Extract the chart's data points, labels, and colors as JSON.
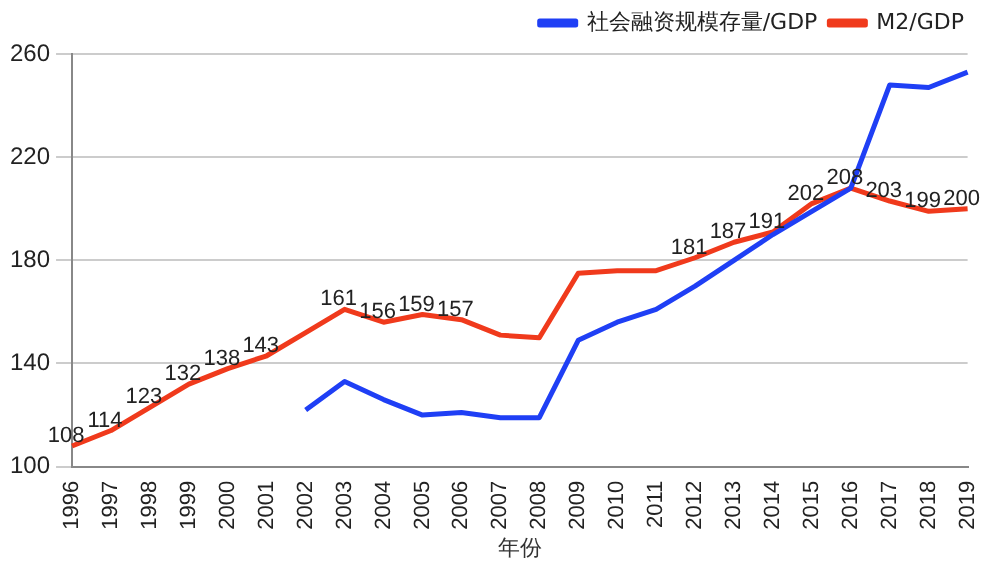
{
  "chart_data": {
    "type": "line",
    "xlabel": "年份",
    "categories": [
      "1996",
      "1997",
      "1998",
      "1999",
      "2000",
      "2001",
      "2002",
      "2003",
      "2004",
      "2005",
      "2006",
      "2007",
      "2008",
      "2009",
      "2010",
      "2011",
      "2012",
      "2013",
      "2014",
      "2015",
      "2016",
      "2017",
      "2018",
      "2019"
    ],
    "series": [
      {
        "name": "社会融资规模存量/GDP",
        "color": "#1f3ff5",
        "values": [
          null,
          null,
          null,
          null,
          null,
          null,
          122,
          133,
          126,
          120,
          121,
          119,
          119,
          149,
          156,
          161,
          170,
          180,
          190,
          199,
          208,
          248,
          247,
          253
        ]
      },
      {
        "name": "M2/GDP",
        "color": "#f03a1c",
        "values": [
          108,
          114,
          123,
          132,
          138,
          143,
          152,
          161,
          156,
          159,
          157,
          151,
          150,
          175,
          176,
          176,
          181,
          187,
          191,
          202,
          208,
          203,
          199,
          200
        ],
        "value_labels": [
          "108",
          "114",
          "123",
          "132",
          "138",
          "143",
          null,
          "161",
          "156",
          "159",
          "157",
          null,
          null,
          null,
          null,
          null,
          "181",
          "187",
          "191",
          "202",
          "208",
          "203",
          "199",
          "200"
        ]
      }
    ],
    "ylim": [
      100,
      260
    ],
    "yticks": [
      100,
      140,
      180,
      220,
      260
    ],
    "grid": "y",
    "legend": "top",
    "marker": "none",
    "line_style": "solid"
  }
}
